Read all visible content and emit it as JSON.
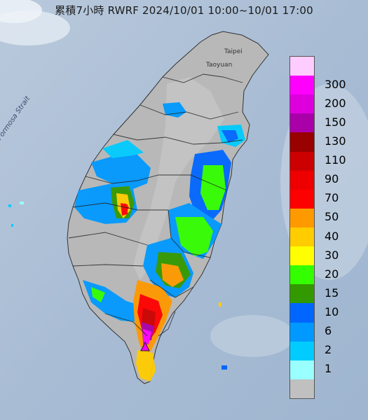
{
  "title": "累積7小時 RWRF 2024/10/01 10:00~10/01 17:00",
  "map_labels": {
    "strait": "Formosa Strait",
    "taipei": "Taipei",
    "taoyuan": "Taoyuan"
  },
  "legend": {
    "colors": [
      "#ffccff",
      "#ff00ff",
      "#dd00dd",
      "#aa00aa",
      "#990000",
      "#cc0000",
      "#ee0000",
      "#ff0000",
      "#ff9900",
      "#ffcc00",
      "#ffff00",
      "#33ff00",
      "#339900",
      "#0066ff",
      "#0099ff",
      "#00ccff",
      "#99ffff",
      "#c0c0c0"
    ],
    "labels": [
      "300",
      "200",
      "150",
      "130",
      "110",
      "90",
      "70",
      "50",
      "40",
      "30",
      "20",
      "15",
      "10",
      "6",
      "2",
      "1"
    ]
  }
}
